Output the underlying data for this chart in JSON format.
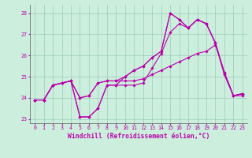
{
  "x": [
    0,
    1,
    2,
    3,
    4,
    5,
    6,
    7,
    8,
    9,
    10,
    11,
    12,
    13,
    14,
    15,
    16,
    17,
    18,
    19,
    20,
    21,
    22,
    23
  ],
  "line1": [
    23.9,
    23.9,
    24.6,
    24.7,
    24.8,
    23.1,
    23.1,
    23.5,
    24.6,
    24.6,
    24.6,
    24.6,
    24.7,
    25.4,
    26.1,
    27.1,
    27.5,
    27.3,
    27.7,
    27.5,
    26.6,
    25.1,
    24.1,
    24.2
  ],
  "line2": [
    23.9,
    23.9,
    24.6,
    24.7,
    24.8,
    24.0,
    24.1,
    24.7,
    24.8,
    24.8,
    24.8,
    24.8,
    24.9,
    25.1,
    25.3,
    25.5,
    25.7,
    25.9,
    26.1,
    26.2,
    26.5,
    25.2,
    24.1,
    24.1
  ],
  "line3": [
    23.9,
    23.9,
    24.6,
    24.7,
    24.8,
    24.0,
    24.1,
    24.7,
    24.8,
    24.8,
    25.0,
    25.3,
    25.5,
    25.9,
    26.2,
    28.0,
    27.7,
    27.3,
    27.7,
    27.5,
    26.6,
    25.2,
    24.1,
    24.2
  ],
  "line4": [
    23.9,
    23.9,
    24.6,
    24.7,
    24.8,
    23.1,
    23.1,
    23.5,
    24.6,
    24.6,
    25.0,
    25.3,
    25.5,
    25.9,
    26.2,
    28.0,
    27.7,
    27.3,
    27.7,
    27.5,
    26.6,
    25.1,
    24.1,
    24.2
  ],
  "ylim": [
    22.8,
    28.4
  ],
  "xlim": [
    -0.5,
    23.5
  ],
  "yticks": [
    23,
    24,
    25,
    26,
    27,
    28
  ],
  "xticks": [
    0,
    1,
    2,
    3,
    4,
    5,
    6,
    7,
    8,
    9,
    10,
    11,
    12,
    13,
    14,
    15,
    16,
    17,
    18,
    19,
    20,
    21,
    22,
    23
  ],
  "line_color": "#bb00aa",
  "bg_color": "#cceedd",
  "grid_color": "#99ccbb",
  "xlabel": "Windchill (Refroidissement éolien,°C)",
  "marker": "D",
  "marker_size": 1.8,
  "linewidth": 0.8,
  "tick_fontsize": 4.8,
  "label_fontsize": 5.8
}
